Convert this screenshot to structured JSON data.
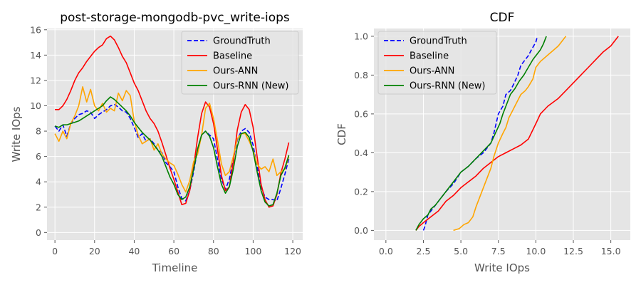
{
  "chart_data": [
    {
      "type": "line",
      "title": "post-storage-mongodb-pvc_write-iops",
      "xlabel": "Timeline",
      "ylabel": "Write IOps",
      "xlim": [
        -4,
        125
      ],
      "ylim": [
        -0.6,
        16.1
      ],
      "xticks": [
        0,
        20,
        40,
        60,
        80,
        100,
        120
      ],
      "yticks": [
        0,
        2,
        4,
        6,
        8,
        10,
        12,
        14,
        16
      ],
      "xtick_labels": [
        "0",
        "20",
        "40",
        "60",
        "80",
        "100",
        "120"
      ],
      "ytick_labels": [
        "0",
        "2",
        "4",
        "6",
        "8",
        "10",
        "12",
        "14",
        "16"
      ],
      "grid": true,
      "legend": "top-right",
      "series": [
        {
          "name": "GroundTruth",
          "color": "#0000ff",
          "dash": "dashed",
          "x": [
            0,
            2,
            4,
            6,
            8,
            10,
            12,
            14,
            16,
            18,
            20,
            22,
            24,
            26,
            28,
            30,
            32,
            34,
            36,
            38,
            40,
            42,
            44,
            46,
            48,
            50,
            52,
            54,
            56,
            58,
            60,
            62,
            64,
            66,
            68,
            70,
            72,
            74,
            76,
            78,
            80,
            82,
            84,
            86,
            88,
            90,
            92,
            94,
            96,
            98,
            100,
            102,
            104,
            106,
            108,
            110,
            112,
            114,
            116,
            118
          ],
          "y": [
            8.4,
            8.0,
            8.5,
            7.6,
            8.6,
            9.0,
            9.3,
            9.4,
            9.6,
            9.5,
            9.0,
            9.3,
            9.5,
            9.7,
            10.0,
            10.1,
            9.9,
            9.6,
            9.5,
            9.0,
            8.3,
            7.5,
            7.8,
            7.2,
            7.4,
            7.0,
            6.5,
            6.3,
            5.5,
            5.2,
            4.8,
            3.6,
            2.7,
            2.5,
            3.3,
            4.8,
            6.6,
            7.7,
            8.0,
            7.7,
            7.4,
            5.8,
            4.2,
            3.4,
            4.2,
            5.8,
            7.3,
            8.0,
            8.2,
            7.9,
            6.9,
            5.2,
            3.6,
            2.8,
            2.6,
            2.6,
            2.5,
            3.5,
            4.6,
            5.8
          ]
        },
        {
          "name": "Baseline",
          "color": "#ff0000",
          "dash": "solid",
          "x": [
            0,
            2,
            4,
            6,
            8,
            10,
            12,
            14,
            16,
            18,
            20,
            22,
            24,
            26,
            28,
            30,
            32,
            34,
            36,
            38,
            40,
            42,
            44,
            46,
            48,
            50,
            52,
            54,
            56,
            58,
            60,
            62,
            64,
            66,
            68,
            70,
            72,
            74,
            76,
            78,
            80,
            82,
            84,
            86,
            88,
            90,
            92,
            94,
            96,
            98,
            100,
            102,
            104,
            106,
            108,
            110,
            112,
            114,
            116,
            118
          ],
          "y": [
            9.7,
            9.7,
            10.0,
            10.5,
            11.2,
            12.0,
            12.6,
            13.0,
            13.5,
            13.9,
            14.3,
            14.6,
            14.8,
            15.3,
            15.5,
            15.2,
            14.6,
            13.9,
            13.4,
            12.6,
            11.8,
            11.2,
            10.4,
            9.6,
            9.0,
            8.6,
            8.0,
            7.1,
            6.1,
            5.1,
            4.2,
            3.2,
            2.2,
            2.3,
            3.3,
            5.2,
            7.5,
            9.4,
            10.3,
            9.9,
            8.6,
            6.6,
            4.5,
            3.3,
            3.6,
            5.6,
            8.1,
            9.5,
            10.1,
            9.7,
            8.3,
            6.0,
            3.8,
            2.6,
            2.0,
            2.1,
            3.0,
            4.7,
            5.8,
            7.1
          ]
        },
        {
          "name": "Ours-ANN",
          "color": "#ffa500",
          "dash": "solid",
          "x": [
            0,
            2,
            4,
            6,
            8,
            10,
            12,
            14,
            16,
            18,
            20,
            22,
            24,
            26,
            28,
            30,
            32,
            34,
            36,
            38,
            40,
            42,
            44,
            46,
            48,
            50,
            52,
            54,
            56,
            58,
            60,
            62,
            64,
            66,
            68,
            70,
            72,
            74,
            76,
            78,
            80,
            82,
            84,
            86,
            88,
            90,
            92,
            94,
            96,
            98,
            100,
            102,
            104,
            106,
            108,
            110,
            112,
            114,
            116,
            118
          ],
          "y": [
            7.8,
            7.2,
            8.0,
            7.4,
            8.6,
            9.2,
            10.0,
            11.5,
            10.3,
            11.3,
            10.0,
            9.6,
            10.2,
            9.5,
            9.8,
            9.6,
            11.0,
            10.4,
            11.2,
            10.8,
            8.8,
            7.7,
            7.0,
            7.2,
            7.4,
            6.5,
            7.0,
            6.2,
            5.8,
            5.5,
            5.3,
            4.6,
            3.8,
            3.2,
            4.1,
            5.6,
            6.2,
            7.7,
            9.8,
            10.2,
            9.0,
            7.3,
            5.4,
            4.5,
            4.8,
            6.0,
            7.4,
            7.8,
            7.8,
            7.2,
            6.5,
            5.4,
            5.0,
            5.2,
            4.8,
            5.8,
            4.5,
            4.8,
            5.0,
            6.0
          ]
        },
        {
          "name": "Ours-RNN (New)",
          "color": "#008000",
          "dash": "solid",
          "x": [
            0,
            2,
            4,
            6,
            8,
            10,
            12,
            14,
            16,
            18,
            20,
            22,
            24,
            26,
            28,
            30,
            32,
            34,
            36,
            38,
            40,
            42,
            44,
            46,
            48,
            50,
            52,
            54,
            56,
            58,
            60,
            62,
            64,
            66,
            68,
            70,
            72,
            74,
            76,
            78,
            80,
            82,
            84,
            86,
            88,
            90,
            92,
            94,
            96,
            98,
            100,
            102,
            104,
            106,
            108,
            110,
            112,
            114,
            116,
            118
          ],
          "y": [
            8.4,
            8.3,
            8.5,
            8.5,
            8.6,
            8.7,
            8.8,
            9.0,
            9.2,
            9.4,
            9.6,
            9.8,
            10.0,
            10.4,
            10.7,
            10.5,
            10.2,
            9.9,
            9.6,
            9.2,
            8.7,
            8.3,
            7.9,
            7.6,
            7.3,
            6.9,
            6.5,
            6.0,
            5.2,
            4.4,
            3.8,
            3.0,
            2.6,
            2.8,
            3.6,
            5.0,
            6.6,
            7.7,
            8.0,
            7.6,
            6.7,
            5.2,
            3.8,
            3.1,
            3.6,
            5.0,
            6.8,
            7.8,
            7.9,
            7.5,
            6.4,
            4.8,
            3.3,
            2.4,
            2.1,
            2.2,
            3.1,
            4.5,
            5.1,
            6.1
          ]
        }
      ]
    },
    {
      "type": "line",
      "title": "CDF",
      "xlabel": "Write IOps",
      "ylabel": "CDF",
      "xlim": [
        -0.8,
        16.3
      ],
      "ylim": [
        -0.05,
        1.04
      ],
      "xticks": [
        0,
        2.5,
        5.0,
        7.5,
        10.0,
        12.5,
        15.0
      ],
      "yticks": [
        0,
        0.2,
        0.4,
        0.6,
        0.8,
        1.0
      ],
      "xtick_labels": [
        "0.0",
        "2.5",
        "5.0",
        "7.5",
        "10.0",
        "12.5",
        "15.0"
      ],
      "ytick_labels": [
        "0.0",
        "0.2",
        "0.4",
        "0.6",
        "0.8",
        "1.0"
      ],
      "grid": true,
      "legend": "top-left",
      "series": [
        {
          "name": "GroundTruth",
          "color": "#0000ff",
          "dash": "dashed",
          "x": [
            2.5,
            2.6,
            2.7,
            2.8,
            3.0,
            3.3,
            3.6,
            4.0,
            4.5,
            5.0,
            5.5,
            6.0,
            6.5,
            7.0,
            7.2,
            7.5,
            7.8,
            8.0,
            8.3,
            8.5,
            8.8,
            9.0,
            9.3,
            9.5,
            9.7,
            10.0,
            10.1
          ],
          "y": [
            0.0,
            0.02,
            0.05,
            0.08,
            0.1,
            0.13,
            0.16,
            0.2,
            0.24,
            0.3,
            0.33,
            0.37,
            0.4,
            0.45,
            0.5,
            0.6,
            0.64,
            0.7,
            0.72,
            0.75,
            0.8,
            0.85,
            0.88,
            0.9,
            0.93,
            0.97,
            1.0
          ]
        },
        {
          "name": "Baseline",
          "color": "#ff0000",
          "dash": "solid",
          "x": [
            2.0,
            2.2,
            2.5,
            3.0,
            3.5,
            4.0,
            4.5,
            5.0,
            5.5,
            6.0,
            6.5,
            7.0,
            7.5,
            8.0,
            8.5,
            9.0,
            9.5,
            10.0,
            10.3,
            10.8,
            11.5,
            12.0,
            12.5,
            13.0,
            13.5,
            14.0,
            14.5,
            15.0,
            15.5
          ],
          "y": [
            0.0,
            0.02,
            0.04,
            0.07,
            0.1,
            0.15,
            0.18,
            0.22,
            0.25,
            0.28,
            0.32,
            0.35,
            0.38,
            0.4,
            0.42,
            0.44,
            0.47,
            0.55,
            0.6,
            0.64,
            0.68,
            0.72,
            0.76,
            0.8,
            0.84,
            0.88,
            0.92,
            0.95,
            1.0
          ]
        },
        {
          "name": "Ours-ANN",
          "color": "#ffa500",
          "dash": "solid",
          "x": [
            4.5,
            4.9,
            5.2,
            5.5,
            5.8,
            6.0,
            6.3,
            6.5,
            6.8,
            7.0,
            7.2,
            7.5,
            7.8,
            8.0,
            8.2,
            8.4,
            8.6,
            8.8,
            9.0,
            9.3,
            9.5,
            9.8,
            10.0,
            10.3,
            10.6,
            10.9,
            11.2,
            11.5,
            11.8,
            12.0
          ],
          "y": [
            0.0,
            0.01,
            0.03,
            0.04,
            0.07,
            0.12,
            0.18,
            0.22,
            0.28,
            0.32,
            0.38,
            0.45,
            0.5,
            0.53,
            0.58,
            0.61,
            0.64,
            0.67,
            0.7,
            0.72,
            0.74,
            0.78,
            0.84,
            0.87,
            0.89,
            0.91,
            0.93,
            0.95,
            0.98,
            1.0
          ]
        },
        {
          "name": "Ours-RNN (New)",
          "color": "#008000",
          "dash": "solid",
          "x": [
            2.0,
            2.2,
            2.5,
            2.8,
            3.0,
            3.3,
            3.6,
            4.0,
            4.5,
            5.0,
            5.5,
            6.0,
            6.5,
            7.0,
            7.3,
            7.6,
            7.8,
            8.0,
            8.3,
            8.6,
            8.9,
            9.2,
            9.5,
            9.8,
            10.0,
            10.3,
            10.5,
            10.7
          ],
          "y": [
            0.0,
            0.03,
            0.06,
            0.08,
            0.11,
            0.13,
            0.16,
            0.2,
            0.25,
            0.3,
            0.33,
            0.37,
            0.41,
            0.45,
            0.5,
            0.55,
            0.6,
            0.64,
            0.7,
            0.73,
            0.77,
            0.8,
            0.84,
            0.88,
            0.9,
            0.93,
            0.96,
            1.0
          ]
        }
      ]
    }
  ]
}
